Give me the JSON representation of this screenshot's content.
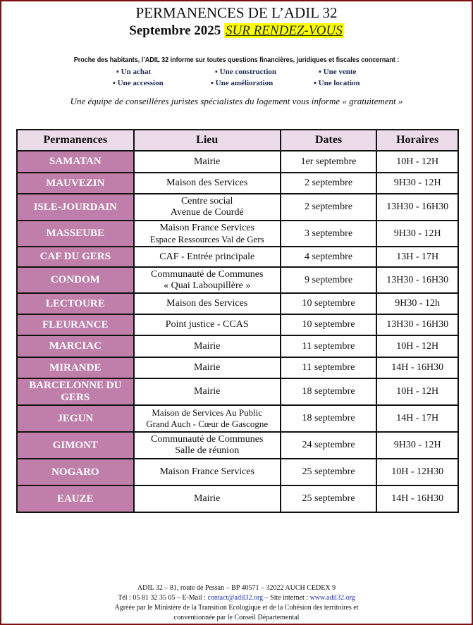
{
  "header": {
    "title": "PERMANENCES DE L’ADIL 32",
    "month": "Septembre 2025",
    "rdv": "SUR RENDEZ-VOUS"
  },
  "intro": "Proche des habitants, l’ADIL 32 informe sur toutes questions financières, juridiques et fiscales concernant :",
  "topics": [
    "▪ Un achat",
    "▪ Une construction",
    "▪ Une vente",
    "▪ Une accession",
    "▪ Une amélioration",
    "▪ Une location"
  ],
  "team": "Une équipe de conseillères juristes spécialistes du logement vous informe « gratuitement »",
  "table": {
    "headers": [
      "Permanences",
      "Lieu",
      "Dates",
      "Horaires"
    ],
    "rows": [
      {
        "perm": "SAMATAN",
        "lieu": [
          "Mairie"
        ],
        "date": "1er septembre",
        "hours": "10H - 12H"
      },
      {
        "perm": "MAUVEZIN",
        "lieu": [
          "Maison des Services"
        ],
        "date": "2 septembre",
        "hours": "9H30 - 12H"
      },
      {
        "perm": "ISLE-JOURDAIN",
        "lieu": [
          "Centre social",
          "Avenue de Courdé"
        ],
        "date": "2 septembre",
        "hours": "13H30 - 16H30"
      },
      {
        "perm": "MASSEUBE",
        "lieu": [
          "Maison France Services",
          "Espace Ressources Val de Gers"
        ],
        "date": "3 septembre",
        "hours": "9H30 - 12H"
      },
      {
        "perm": "CAF DU GERS",
        "lieu": [
          "CAF - Entrée principale"
        ],
        "date": "4 septembre",
        "hours": "13H - 17H"
      },
      {
        "perm": "CONDOM",
        "lieu": [
          "Communauté de Communes",
          "« Quai Laboupillère »"
        ],
        "date": "9 septembre",
        "hours": "13H30 - 16H30"
      },
      {
        "perm": "LECTOURE",
        "lieu": [
          "Maison des Services"
        ],
        "date": "10 septembre",
        "hours": "9H30 - 12h"
      },
      {
        "perm": "FLEURANCE",
        "lieu": [
          "Point justice - CCAS"
        ],
        "date": "10 septembre",
        "hours": "13H30 - 16H30"
      },
      {
        "perm": "MARCIAC",
        "lieu": [
          "Mairie"
        ],
        "date": "11 septembre",
        "hours": "10H - 12H"
      },
      {
        "perm": "MIRANDE",
        "lieu": [
          "Mairie"
        ],
        "date": "11 septembre",
        "hours": "14H - 16H30"
      },
      {
        "perm": "BARCELONNE DU GERS",
        "lieu": [
          "Mairie"
        ],
        "date": "18 septembre",
        "hours": "10H - 12H"
      },
      {
        "perm": "JEGUN",
        "lieu": [
          "Maison de Services Au Public",
          "Grand Auch - Cœur de Gascogne"
        ],
        "date": "18 septembre",
        "hours": "14H - 17H"
      },
      {
        "perm": "GIMONT",
        "lieu": [
          "Communauté de Communes",
          "Salle de réunion"
        ],
        "date": "24 septembre",
        "hours": "9H30 - 12H"
      },
      {
        "perm": "NOGARO",
        "lieu": [
          "Maison France Services"
        ],
        "date": "25 septembre",
        "hours": "10H - 12H30"
      },
      {
        "perm": "EAUZE",
        "lieu": [
          "Mairie"
        ],
        "date": "25 septembre",
        "hours": "14H - 16H30"
      }
    ]
  },
  "footer": {
    "line1": "ADIL 32 – 81, route de Pessan – BP 40571 – 32022 AUCH CEDEX 9",
    "tel": "Tél : 05 81 32 35 05 – E-Mail : ",
    "email": "contact@adil32.org",
    "site_label": " – Site internet : ",
    "site": "www.adil32.org",
    "line3": "Agréée par le Ministère de la Transition Ecologique et de la Cohésion des territoires et",
    "line4": "conventionnée par le Conseil Départemental"
  },
  "colors": {
    "border": "#7a1010",
    "header_bg": "#ecdcea",
    "perm_bg": "#bf7faa",
    "highlight": "#ffff00"
  }
}
